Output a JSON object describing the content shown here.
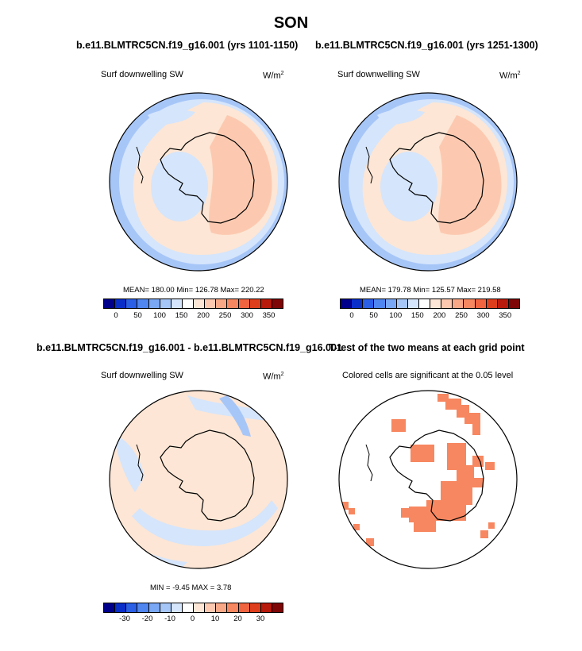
{
  "figure": {
    "title": "SON",
    "panel1": {
      "title": "b.e11.BLMTRC5CN.f19_g16.001 (yrs 1101-1150)",
      "variable": "Surf downwelling SW",
      "units_base": "W/m",
      "units_exp": "2",
      "stats": "MEAN= 180.00  Min= 126.78  Max= 220.22"
    },
    "panel2": {
      "title": "b.e11.BLMTRC5CN.f19_g16.001 (yrs 1251-1300)",
      "variable": "Surf downwelling SW",
      "units_base": "W/m",
      "units_exp": "2",
      "stats": "MEAN= 179.78  Min= 125.57  Max= 219.58"
    },
    "panel3": {
      "title": "b.e11.BLMTRC5CN.f19_g16.001 - b.e11.BLMTRC5CN.f19_g16.001",
      "variable": "Surf downwelling SW",
      "units_base": "W/m",
      "units_exp": "2",
      "stats": "MIN =  -9.45 MAX =   3.78"
    },
    "panel4": {
      "title": "T-test of the two means at each grid point",
      "subtitle": "Colored cells are significant at the 0.05 level"
    },
    "colorbar_abs": {
      "ticks": [
        "0",
        "50",
        "100",
        "150",
        "200",
        "250",
        "300",
        "350"
      ],
      "colors": [
        "#00008b",
        "#0a2fc9",
        "#2a5fe6",
        "#4f86f0",
        "#7aa8f5",
        "#a7c6f8",
        "#d5e5fb",
        "#ffffff",
        "#fde6d5",
        "#fcc9b0",
        "#f9a887",
        "#f78760",
        "#f06440",
        "#de3e1c",
        "#b81a0c",
        "#7e0606"
      ]
    },
    "colorbar_diff": {
      "ticks": [
        "-30",
        "-20",
        "-10",
        "0",
        "10",
        "20",
        "30"
      ],
      "colors": [
        "#00008b",
        "#0a2fc9",
        "#2a5fe6",
        "#4f86f0",
        "#7aa8f5",
        "#a7c6f8",
        "#d5e5fb",
        "#ffffff",
        "#fde6d5",
        "#fcc9b0",
        "#f9a887",
        "#f78760",
        "#f06440",
        "#de3e1c",
        "#b81a0c",
        "#7e0606"
      ]
    },
    "palette": {
      "ocean_outer": "#a7c6f8",
      "ring_light_blue": "#d5e5fb",
      "ring_peach": "#fde6d5",
      "high_salmon": "#fcc9b0",
      "significant": "#f78760"
    }
  }
}
